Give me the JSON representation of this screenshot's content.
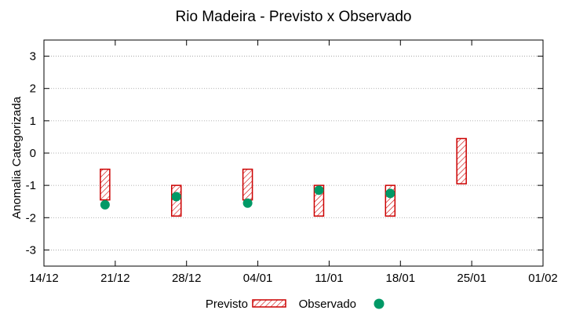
{
  "chart_data": {
    "type": "range-bar + scatter",
    "title": "Rio Madeira - Previsto x Observado",
    "ylabel": "Anomalia Categorizada",
    "xlabel": "",
    "ylim": [
      -3.5,
      3.5
    ],
    "yticks": [
      -3,
      -2,
      -1,
      0,
      1,
      2,
      3
    ],
    "x_tick_labels": [
      "14/12",
      "21/12",
      "28/12",
      "04/01",
      "11/01",
      "18/01",
      "25/01",
      "01/02"
    ],
    "x_range_days": [
      0,
      49
    ],
    "grid": "horizontal dotted",
    "legend_position": "bottom",
    "colors": {
      "previsto": "#cc0000",
      "observado": "#009966"
    },
    "series": [
      {
        "name": "Previsto",
        "type": "range",
        "points": [
          {
            "date": "20/12",
            "low": -1.45,
            "high": -0.5
          },
          {
            "date": "27/12",
            "low": -1.95,
            "high": -1.0
          },
          {
            "date": "03/01",
            "low": -1.45,
            "high": -0.5
          },
          {
            "date": "10/01",
            "low": -1.95,
            "high": -1.0
          },
          {
            "date": "17/01",
            "low": -1.95,
            "high": -1.0
          },
          {
            "date": "24/01",
            "low": -0.95,
            "high": 0.45
          }
        ]
      },
      {
        "name": "Observado",
        "type": "scatter",
        "points": [
          {
            "date": "20/12",
            "value": -1.6
          },
          {
            "date": "27/12",
            "value": -1.35
          },
          {
            "date": "03/01",
            "value": -1.55
          },
          {
            "date": "10/01",
            "value": -1.15
          },
          {
            "date": "17/01",
            "value": -1.25
          }
        ]
      }
    ]
  }
}
